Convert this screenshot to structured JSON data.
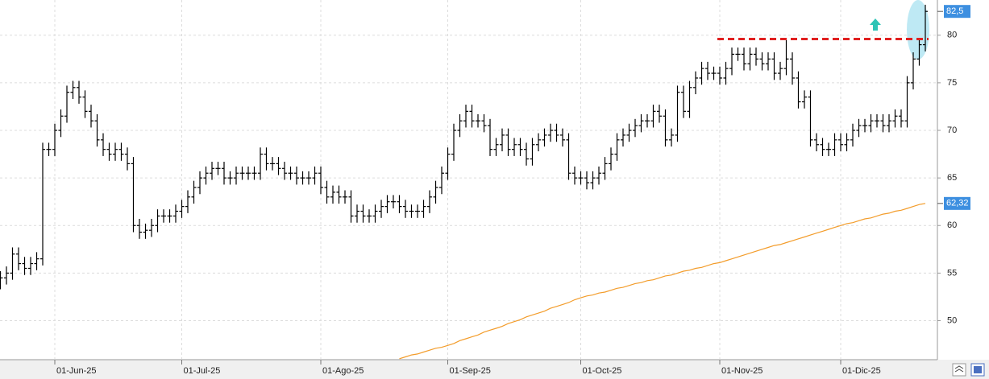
{
  "chart_data": {
    "type": "ohlc",
    "categories": [
      null,
      null,
      null,
      null,
      null,
      null,
      null,
      null,
      null,
      "01-Jun-25",
      null,
      null,
      null,
      null,
      null,
      null,
      null,
      null,
      null,
      null,
      null,
      null,
      null,
      null,
      null,
      null,
      null,
      null,
      null,
      null,
      "01-Jul-25",
      null,
      null,
      null,
      null,
      null,
      null,
      null,
      null,
      null,
      null,
      null,
      null,
      null,
      null,
      null,
      null,
      null,
      null,
      null,
      null,
      null,
      null,
      "01-Ago-25",
      null,
      null,
      null,
      null,
      null,
      null,
      null,
      null,
      null,
      null,
      null,
      null,
      null,
      null,
      null,
      null,
      null,
      null,
      null,
      null,
      "01-Sep-25",
      null,
      null,
      null,
      null,
      null,
      null,
      null,
      null,
      null,
      null,
      null,
      null,
      null,
      null,
      null,
      null,
      null,
      null,
      null,
      null,
      null,
      "01-Oct-25",
      null,
      null,
      null,
      null,
      null,
      null,
      null,
      null,
      null,
      null,
      null,
      null,
      null,
      null,
      null,
      null,
      null,
      null,
      null,
      null,
      null,
      null,
      "01-Nov-25",
      null,
      null,
      null,
      null,
      null,
      null,
      null,
      null,
      null,
      null,
      null,
      null,
      null,
      null,
      null,
      null,
      null,
      null,
      null,
      "01-Dic-25",
      null,
      null,
      null,
      null,
      null,
      null,
      null,
      null,
      null,
      null,
      null,
      null,
      null,
      null
    ],
    "open": [
      54,
      54.5,
      55,
      57,
      56,
      55.5,
      56,
      56.5,
      68,
      68,
      70,
      71.5,
      74,
      74.5,
      73.5,
      72,
      71,
      69,
      68,
      67.5,
      68,
      67.5,
      66.5,
      60,
      59.3,
      59.5,
      60,
      61,
      61,
      61,
      61.5,
      62,
      63,
      64,
      65,
      65.5,
      66,
      66,
      65,
      65,
      65.5,
      65.5,
      65.5,
      65.5,
      67.5,
      66.5,
      66.5,
      66,
      65.5,
      65.5,
      65,
      65,
      65,
      65.5,
      64,
      63,
      63.5,
      63,
      63,
      61,
      61.5,
      61,
      61,
      61.5,
      62,
      62.5,
      62.5,
      62,
      61.5,
      61.5,
      61.5,
      62,
      63,
      64,
      65.5,
      67.5,
      70,
      71,
      72,
      71,
      71,
      70.5,
      68,
      68.5,
      69.5,
      68,
      68.5,
      68,
      67,
      68.5,
      69,
      69.5,
      70,
      69.5,
      69,
      65.5,
      65,
      65,
      64.5,
      65,
      65.5,
      66.5,
      67.5,
      69,
      69.5,
      70,
      70.5,
      71,
      71,
      72,
      71.5,
      69,
      69.5,
      74,
      72,
      74.5,
      75.5,
      76.5,
      76,
      76,
      75.5,
      76.5,
      78,
      78,
      77,
      78,
      77.5,
      77,
      77.5,
      76,
      76.5,
      77.5,
      75.5,
      73,
      73.5,
      69,
      68.5,
      68,
      68,
      69,
      68.5,
      69,
      70,
      70.5,
      70.5,
      71,
      71,
      70.5,
      71,
      71.5,
      71,
      75,
      77.5,
      79
    ],
    "high": [
      55.2,
      55.7,
      57.7,
      57.7,
      56.7,
      56.7,
      57.2,
      68.7,
      68.7,
      70.7,
      72.2,
      74.7,
      75.2,
      75.2,
      74.2,
      72.7,
      71.7,
      69.7,
      68.7,
      68.7,
      68.7,
      68.2,
      67.2,
      60.7,
      60.2,
      60.7,
      61.7,
      61.7,
      61.7,
      62.2,
      62.7,
      63.7,
      64.7,
      65.7,
      66.2,
      66.7,
      66.7,
      66.7,
      65.7,
      66.2,
      66.2,
      66.2,
      66.2,
      68.2,
      68.2,
      67.2,
      67.2,
      66.7,
      66.2,
      66.2,
      65.7,
      65.7,
      66.2,
      66.2,
      64.7,
      64.2,
      64.2,
      63.7,
      63.7,
      62.2,
      62.2,
      61.7,
      62.2,
      62.7,
      63.2,
      63.2,
      63.2,
      62.7,
      62.2,
      62.2,
      62.7,
      63.7,
      64.7,
      66.2,
      68.2,
      70.7,
      71.7,
      72.7,
      72.7,
      71.7,
      71.7,
      71.2,
      69.2,
      70.2,
      70.2,
      69.2,
      69.2,
      68.7,
      69.2,
      69.7,
      70.2,
      70.7,
      70.7,
      70.2,
      69.7,
      66.2,
      65.7,
      65.7,
      65.7,
      66.2,
      67.2,
      68.2,
      69.7,
      70.2,
      70.7,
      71.2,
      71.7,
      71.7,
      72.7,
      72.7,
      72.2,
      70.2,
      74.7,
      74.7,
      75.2,
      76.2,
      77.2,
      77.2,
      76.7,
      76.7,
      77.2,
      78.7,
      78.7,
      78.7,
      78.7,
      78.7,
      78.2,
      78.2,
      78.2,
      77.2,
      79.5,
      78.2,
      76.2,
      74.2,
      74.2,
      69.7,
      69.2,
      68.7,
      69.7,
      69.7,
      69.7,
      70.7,
      71.2,
      71.2,
      71.7,
      71.7,
      71.7,
      71.7,
      72.2,
      72.2,
      75.7,
      78.2,
      79.7,
      83.2
    ],
    "low": [
      53.3,
      53.8,
      54.3,
      55.3,
      54.8,
      54.8,
      55.3,
      55.8,
      67.3,
      67.3,
      69.3,
      70.8,
      73.3,
      72.8,
      71.3,
      70.3,
      68.3,
      67.3,
      66.8,
      66.8,
      66.8,
      65.8,
      59.3,
      58.6,
      58.6,
      58.8,
      59.3,
      60.3,
      60.3,
      60.3,
      60.8,
      61.3,
      62.3,
      63.3,
      64.3,
      64.8,
      65.3,
      64.3,
      64.3,
      64.3,
      64.8,
      64.8,
      64.8,
      64.8,
      65.8,
      65.8,
      65.3,
      64.8,
      64.8,
      64.3,
      64.3,
      64.3,
      64.3,
      63.3,
      62.3,
      62.3,
      62.3,
      62.3,
      60.3,
      60.3,
      60.3,
      60.3,
      60.3,
      60.8,
      61.3,
      61.8,
      61.3,
      60.8,
      60.8,
      60.8,
      60.8,
      61.3,
      62.3,
      63.3,
      64.8,
      66.8,
      69.3,
      70.3,
      70.3,
      70.3,
      69.8,
      67.3,
      67.3,
      67.8,
      67.3,
      67.3,
      67.3,
      66.3,
      66.3,
      67.8,
      68.3,
      68.8,
      68.8,
      68.3,
      64.8,
      64.3,
      64.3,
      63.8,
      63.8,
      64.3,
      64.8,
      65.8,
      66.8,
      68.3,
      68.8,
      69.3,
      69.8,
      70.3,
      70.3,
      70.8,
      68.3,
      68.3,
      68.8,
      71.3,
      71.3,
      73.8,
      74.8,
      75.3,
      75.3,
      74.8,
      74.8,
      75.8,
      77.3,
      76.3,
      76.3,
      76.8,
      76.3,
      76.3,
      75.3,
      75.3,
      75.8,
      74.8,
      72.3,
      72.3,
      68.3,
      67.8,
      67.3,
      67.3,
      67.3,
      67.8,
      67.8,
      68.3,
      69.3,
      69.8,
      69.8,
      70.3,
      69.8,
      69.8,
      70.3,
      70.3,
      70.3,
      74.3,
      76.8,
      78.3
    ],
    "close": [
      54.5,
      55,
      57,
      56,
      55.5,
      56,
      56.5,
      68,
      68,
      70,
      71.5,
      74,
      74.5,
      73.5,
      72,
      71,
      69,
      68,
      67.5,
      68,
      67.5,
      66.5,
      60,
      59.3,
      59.5,
      60,
      61,
      61,
      61,
      61.5,
      62,
      63,
      64,
      65,
      65.5,
      66,
      66,
      65,
      65,
      65.5,
      65.5,
      65.5,
      65.5,
      67.5,
      66.5,
      66.5,
      66,
      65.5,
      65.5,
      65,
      65,
      65,
      65.5,
      64,
      63,
      63.5,
      63,
      63,
      61,
      61.5,
      61,
      61,
      61.5,
      62,
      62.5,
      62.5,
      62,
      61.5,
      61.5,
      61.5,
      62,
      63,
      64,
      65.5,
      67.5,
      70,
      71,
      72,
      71,
      71,
      70.5,
      68,
      68.5,
      69.5,
      68,
      68.5,
      68,
      67,
      68.5,
      69,
      69.5,
      70,
      69.5,
      69,
      65.5,
      65,
      65,
      64.5,
      65,
      65.5,
      66.5,
      67.5,
      69,
      69.5,
      70,
      70.5,
      71,
      71,
      72,
      71.5,
      69,
      69.5,
      74,
      72,
      74.5,
      75.5,
      76.5,
      76,
      76,
      75.5,
      76.5,
      78,
      78,
      77,
      78,
      77.5,
      77,
      77.5,
      76,
      76.5,
      77.5,
      75.5,
      73,
      73.5,
      69,
      68.5,
      68,
      68,
      69,
      68.5,
      69,
      70,
      70.5,
      70.5,
      71,
      71,
      70.5,
      71,
      71.5,
      71,
      75,
      77.5,
      79,
      82.5
    ],
    "color": "#000000",
    "overlay": {
      "color": "#f39c2a",
      "values": [
        null,
        null,
        null,
        null,
        null,
        null,
        null,
        null,
        null,
        null,
        null,
        null,
        null,
        null,
        null,
        null,
        null,
        null,
        null,
        null,
        null,
        null,
        null,
        null,
        null,
        null,
        null,
        null,
        null,
        null,
        null,
        null,
        null,
        null,
        null,
        null,
        null,
        null,
        null,
        null,
        null,
        null,
        null,
        null,
        null,
        null,
        null,
        null,
        null,
        null,
        null,
        null,
        null,
        null,
        null,
        null,
        null,
        null,
        null,
        null,
        null,
        null,
        null,
        null,
        null,
        null,
        46.0,
        46.2,
        46.4,
        46.5,
        46.7,
        46.9,
        47.1,
        47.2,
        47.4,
        47.6,
        47.9,
        48.1,
        48.3,
        48.5,
        48.8,
        49.0,
        49.2,
        49.4,
        49.7,
        49.9,
        50.1,
        50.4,
        50.6,
        50.8,
        51.0,
        51.3,
        51.5,
        51.7,
        51.9,
        52.2,
        52.4,
        52.6,
        52.7,
        52.9,
        53.0,
        53.2,
        53.4,
        53.5,
        53.7,
        53.9,
        54.0,
        54.2,
        54.3,
        54.5,
        54.7,
        54.8,
        55.0,
        55.2,
        55.3,
        55.5,
        55.6,
        55.8,
        56.0,
        56.1,
        56.3,
        56.5,
        56.7,
        56.9,
        57.1,
        57.3,
        57.5,
        57.7,
        57.9,
        58.0,
        58.2,
        58.4,
        58.6,
        58.8,
        59.0,
        59.2,
        59.4,
        59.6,
        59.8,
        60.0,
        60.2,
        60.3,
        60.5,
        60.7,
        60.8,
        61.0,
        61.2,
        61.3,
        61.5,
        61.6,
        61.8,
        62.0,
        62.2,
        62.32
      ]
    },
    "ylim": [
      45.9,
      83.7
    ],
    "yticks": [
      50,
      55,
      60,
      65,
      70,
      75,
      80
    ],
    "grid": true,
    "price_tags": [
      {
        "value": 82.5,
        "label": "82,5"
      },
      {
        "value": 62.32,
        "label": "62,32"
      }
    ],
    "hline": {
      "value": 79.6,
      "color": "#e02020"
    }
  }
}
